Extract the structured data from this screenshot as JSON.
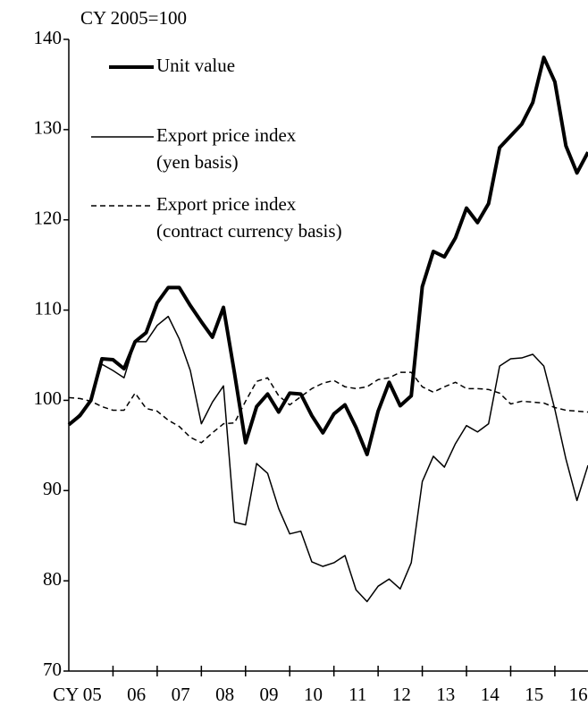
{
  "chart_data": {
    "type": "line",
    "y_label": "CY 2005=100",
    "x": [
      2005,
      2005.25,
      2005.5,
      2005.75,
      2006,
      2006.25,
      2006.5,
      2006.75,
      2007,
      2007.25,
      2007.5,
      2007.75,
      2008,
      2008.25,
      2008.5,
      2008.75,
      2009,
      2009.25,
      2009.5,
      2009.75,
      2010,
      2010.25,
      2010.5,
      2010.75,
      2011,
      2011.25,
      2011.5,
      2011.75,
      2012,
      2012.25,
      2012.5,
      2012.75,
      2013,
      2013.25,
      2013.5,
      2013.75,
      2014,
      2014.25,
      2014.5,
      2014.75,
      2015,
      2015.25,
      2015.5,
      2015.75,
      2016,
      2016.25,
      2016.5,
      2016.75
    ],
    "series": [
      {
        "name": "Unit value",
        "color": "#000000",
        "width": 4,
        "dash": "solid",
        "values": [
          97.3,
          98.3,
          100,
          104.6,
          104.5,
          103.5,
          106.5,
          107.5,
          110.8,
          112.5,
          112.5,
          110.5,
          108.7,
          107,
          110.3,
          103,
          95.3,
          99.3,
          100.7,
          98.7,
          100.8,
          100.7,
          98.3,
          96.4,
          98.5,
          99.5,
          97,
          94,
          98.8,
          102,
          99.4,
          100.5,
          112.6,
          116.5,
          115.9,
          118,
          121.3,
          119.7,
          121.8,
          128,
          129.3,
          130.6,
          133,
          138,
          135.3,
          128.2,
          125.2,
          127.5
        ]
      },
      {
        "name": "Export price index (yen basis)",
        "color": "#000000",
        "width": 1.5,
        "dash": "solid",
        "values": [
          97.3,
          98.5,
          100,
          104,
          103.3,
          102.5,
          106.5,
          106.5,
          108.3,
          109.3,
          106.8,
          103.3,
          97.4,
          99.8,
          101.6,
          86.5,
          86.2,
          93,
          91.9,
          88,
          85.2,
          85.5,
          82.1,
          81.6,
          82,
          82.8,
          79,
          77.7,
          79.4,
          80.2,
          79.1,
          82,
          91,
          93.8,
          92.6,
          95.2,
          97.2,
          96.5,
          97.4,
          103.8,
          104.6,
          104.7,
          105.1,
          103.8,
          99,
          93.5,
          88.9,
          92.8
        ]
      },
      {
        "name": "Export price index (contract currency basis)",
        "color": "#000000",
        "width": 1.5,
        "dash": "dashed",
        "values": [
          100.3,
          100.2,
          99.9,
          99.3,
          98.9,
          98.9,
          100.8,
          99.1,
          98.8,
          97.8,
          97.1,
          95.9,
          95.3,
          96.4,
          97.4,
          97.5,
          99.9,
          102.1,
          102.5,
          100.5,
          99.5,
          100.4,
          101.3,
          101.9,
          102.2,
          101.5,
          101.3,
          101.5,
          102.3,
          102.5,
          103.1,
          103.1,
          101.5,
          100.9,
          101.5,
          102,
          101.3,
          101.3,
          101.2,
          100.8,
          99.6,
          99.9,
          99.8,
          99.7,
          99.2,
          98.9,
          98.8,
          98.7
        ]
      }
    ],
    "xlim": [
      2005,
      2016.75
    ],
    "xticks": [
      {
        "value": 2005.5,
        "label": "CY 05"
      },
      {
        "value": 2006.5,
        "label": "06"
      },
      {
        "value": 2007.5,
        "label": "07"
      },
      {
        "value": 2008.5,
        "label": "08"
      },
      {
        "value": 2009.5,
        "label": "09"
      },
      {
        "value": 2010.5,
        "label": "10"
      },
      {
        "value": 2011.5,
        "label": "11"
      },
      {
        "value": 2012.5,
        "label": "12"
      },
      {
        "value": 2013.5,
        "label": "13"
      },
      {
        "value": 2014.5,
        "label": "14"
      },
      {
        "value": 2015.5,
        "label": "15"
      },
      {
        "value": 2016.5,
        "label": "16"
      }
    ],
    "xminorticks": [
      2006,
      2007,
      2008,
      2009,
      2010,
      2011,
      2012,
      2013,
      2014,
      2015,
      2016
    ],
    "ylim": [
      70,
      140
    ],
    "yticks": [
      70,
      80,
      90,
      100,
      110,
      120,
      130,
      140
    ],
    "legend": "upper left"
  }
}
